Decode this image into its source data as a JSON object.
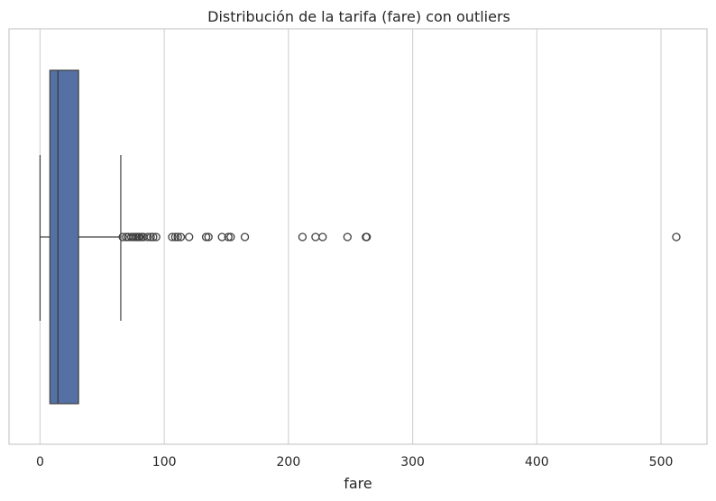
{
  "chart_data": {
    "type": "box",
    "title": "Distribución de la tarifa (fare) con outliers",
    "xlabel": "fare",
    "ylabel": "",
    "orientation": "horizontal",
    "xlim": [
      -25,
      537
    ],
    "xticks": [
      0,
      100,
      200,
      300,
      400,
      500
    ],
    "xtick_labels": [
      "0",
      "100",
      "200",
      "300",
      "400",
      "500"
    ],
    "grid": "vertical",
    "box": {
      "whisker_low": 0,
      "q1": 7.9,
      "median": 14.45,
      "q3": 31.0,
      "whisker_high": 65.0
    },
    "outliers": [
      66.6,
      69.3,
      71.0,
      73.5,
      75.2,
      76.7,
      77.9,
      79.2,
      80.0,
      81.9,
      83.2,
      86.5,
      89.1,
      91.1,
      93.5,
      106.4,
      108.9,
      110.9,
      113.3,
      120.0,
      133.7,
      135.6,
      146.5,
      151.6,
      153.5,
      164.9,
      211.3,
      221.8,
      227.5,
      247.5,
      262.4,
      263.0,
      512.3
    ],
    "colors": {
      "box_fill": "#5470a4",
      "line": "#3f3f3f",
      "grid": "#d4d4d4",
      "frame": "#cccccc"
    }
  }
}
